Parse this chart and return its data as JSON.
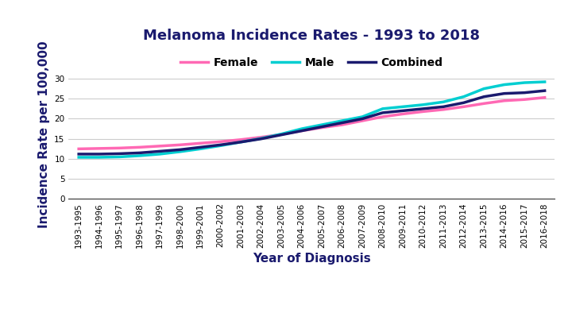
{
  "title": "Melanoma Incidence Rates - 1993 to 2018",
  "xlabel": "Year of Diagnosis",
  "ylabel": "Incidence Rate per 100,000",
  "categories": [
    "1993-1995",
    "1994-1996",
    "1995-1997",
    "1996-1998",
    "1997-1999",
    "1998-2000",
    "1999-2001",
    "2000-2002",
    "2001-2003",
    "2002-2004",
    "2003-2005",
    "2004-2006",
    "2005-2007",
    "2006-2008",
    "2007-2009",
    "2008-2010",
    "2009-2011",
    "2010-2012",
    "2011-2013",
    "2012-2014",
    "2013-2015",
    "2014-2016",
    "2015-2017",
    "2016-2018"
  ],
  "female": [
    12.5,
    12.6,
    12.7,
    12.9,
    13.2,
    13.5,
    13.9,
    14.3,
    14.8,
    15.4,
    16.1,
    17.0,
    17.8,
    18.5,
    19.5,
    20.5,
    21.2,
    21.8,
    22.3,
    23.0,
    23.8,
    24.5,
    24.8,
    25.3
  ],
  "male": [
    10.4,
    10.4,
    10.5,
    10.8,
    11.2,
    11.8,
    12.5,
    13.3,
    14.2,
    15.1,
    16.2,
    17.5,
    18.5,
    19.5,
    20.5,
    22.5,
    23.0,
    23.5,
    24.2,
    25.5,
    27.5,
    28.5,
    29.0,
    29.2
  ],
  "combined": [
    11.2,
    11.2,
    11.3,
    11.5,
    11.9,
    12.3,
    12.9,
    13.5,
    14.2,
    15.0,
    16.0,
    17.0,
    18.0,
    19.0,
    20.0,
    21.5,
    22.0,
    22.5,
    23.0,
    24.0,
    25.5,
    26.3,
    26.5,
    27.0
  ],
  "female_color": "#FF69B4",
  "male_color": "#00CED1",
  "combined_color": "#1a1a6e",
  "line_width": 2.5,
  "ylim": [
    0,
    32
  ],
  "yticks": [
    0,
    5,
    10,
    15,
    20,
    25,
    30
  ],
  "title_fontsize": 13,
  "title_color": "#1a1a6e",
  "label_fontsize": 11,
  "label_color": "#1a1a6e",
  "tick_fontsize": 7.5,
  "legend_fontsize": 10,
  "background_color": "#ffffff",
  "grid_color": "#cccccc"
}
